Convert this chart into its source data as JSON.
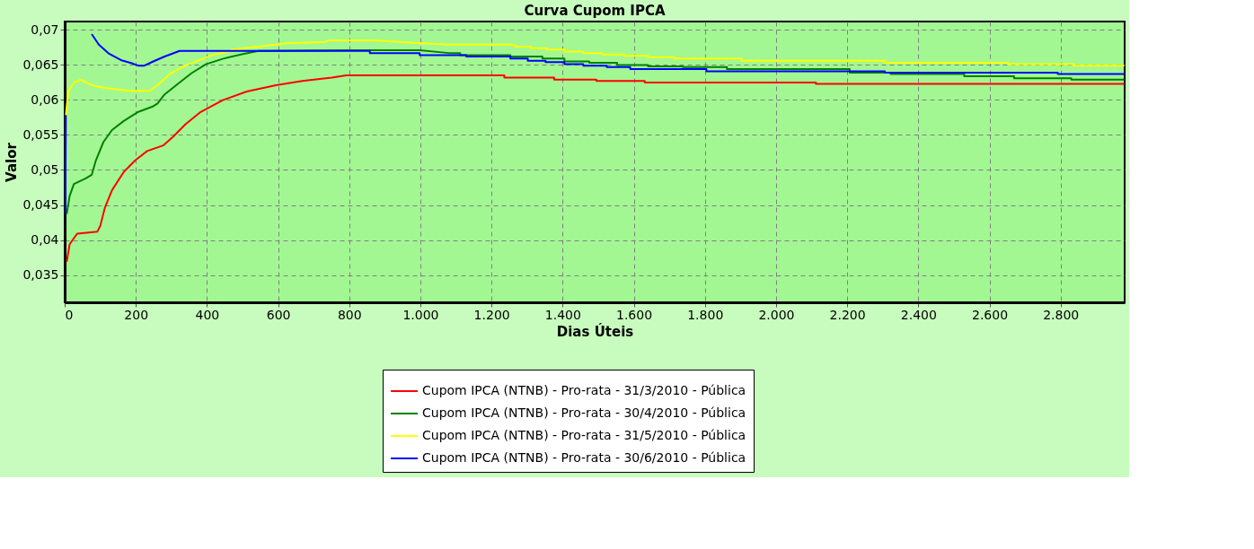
{
  "chart_data": {
    "type": "line",
    "title": "Curva Cupom IPCA",
    "xlabel": "Dias Úteis",
    "ylabel": "Valor",
    "xlim": [
      0,
      2980
    ],
    "ylim": [
      0.0311,
      0.0712
    ],
    "xticks": [
      0,
      200,
      400,
      600,
      800,
      {
        "value": 1000,
        "label": "1.000"
      },
      {
        "value": 1200,
        "label": "1.200"
      },
      {
        "value": 1400,
        "label": "1.400"
      },
      {
        "value": 1600,
        "label": "1.600"
      },
      {
        "value": 1800,
        "label": "1.800"
      },
      {
        "value": 2000,
        "label": "2.000"
      },
      {
        "value": 2200,
        "label": "2.200"
      },
      {
        "value": 2400,
        "label": "2.400"
      },
      {
        "value": 2600,
        "label": "2.600"
      },
      {
        "value": 2800,
        "label": "2.800"
      }
    ],
    "yticks": [
      {
        "value": 0.035,
        "label": "0,035"
      },
      {
        "value": 0.04,
        "label": "0,04"
      },
      {
        "value": 0.045,
        "label": "0,045"
      },
      {
        "value": 0.05,
        "label": "0,05"
      },
      {
        "value": 0.055,
        "label": "0,055"
      },
      {
        "value": 0.06,
        "label": "0,06"
      },
      {
        "value": 0.065,
        "label": "0,065"
      },
      {
        "value": 0.07,
        "label": "0,07"
      }
    ],
    "grid": true,
    "legend": "bottom",
    "line_style": "solid",
    "series": [
      {
        "name": "Cupom IPCA (NTNB) - Pro-rata - 31/3/2010 - Pública",
        "color": "#ff0000",
        "x": [
          5.8,
          14,
          35,
          92,
          100,
          113,
          133,
          166,
          199,
          232,
          277,
          306,
          339,
          380,
          446,
          512,
          594,
          668,
          751,
          792,
          1236,
          1236,
          1376,
          1376,
          1495,
          1495,
          1631,
          1631,
          2112,
          2112,
          2979
        ],
        "values": [
          0.0369,
          0.0394,
          0.0409,
          0.0412,
          0.042,
          0.0446,
          0.0471,
          0.0497,
          0.0514,
          0.0527,
          0.0535,
          0.0548,
          0.0565,
          0.0582,
          0.06,
          0.0612,
          0.0621,
          0.0627,
          0.0632,
          0.0635,
          0.0635,
          0.0632,
          0.0632,
          0.0629,
          0.0629,
          0.0627,
          0.0627,
          0.0625,
          0.0625,
          0.0623,
          0.0623
        ]
      },
      {
        "name": "Cupom IPCA (NTNB) - Pro-rata - 30/4/2010 - Pública",
        "color": "#008000",
        "x": [
          5.8,
          14,
          26,
          59,
          76,
          88,
          109,
          133,
          166,
          207,
          249,
          261,
          281,
          323,
          356,
          397,
          446,
          504,
          545,
          792,
          998,
          1080,
          1112,
          1112,
          1253,
          1253,
          1343,
          1343,
          1405,
          1405,
          1475,
          1475,
          1553,
          1553,
          1640,
          1640,
          1738,
          1738,
          1862,
          1862,
          2207,
          2207,
          2322,
          2322,
          2529,
          2529,
          2669,
          2669,
          2830,
          2830,
          2979
        ],
        "values": [
          0.0437,
          0.0463,
          0.048,
          0.0488,
          0.0493,
          0.0514,
          0.054,
          0.0557,
          0.057,
          0.0583,
          0.0591,
          0.0595,
          0.0608,
          0.0625,
          0.0638,
          0.0651,
          0.0659,
          0.0666,
          0.067,
          0.0671,
          0.0671,
          0.0667,
          0.0667,
          0.0664,
          0.0664,
          0.0662,
          0.0662,
          0.0659,
          0.0659,
          0.0655,
          0.0655,
          0.0653,
          0.0653,
          0.065,
          0.065,
          0.0648,
          0.0648,
          0.0647,
          0.0647,
          0.0644,
          0.0644,
          0.0639,
          0.0639,
          0.0637,
          0.0637,
          0.0634,
          0.0634,
          0.0631,
          0.0631,
          0.0629,
          0.0629
        ]
      },
      {
        "name": "Cupom IPCA (NTNB) - Pro-rata - 31/5/2010 - Pública",
        "color": "#ffff00",
        "x": [
          3.3,
          10,
          26,
          47,
          67,
          92,
          133,
          183,
          240,
          265,
          298,
          339,
          380,
          421,
          454,
          471,
          545,
          627,
          734,
          742,
          866,
          1006,
          1080,
          1265,
          1265,
          1310,
          1310,
          1355,
          1355,
          1405,
          1405,
          1458,
          1458,
          1512,
          1512,
          1574,
          1574,
          1640,
          1640,
          1714,
          1714,
          1903,
          1903,
          2306,
          2306,
          2652,
          2652,
          2837,
          2837,
          2979
        ],
        "values": [
          0.0578,
          0.0612,
          0.0625,
          0.0629,
          0.0623,
          0.0619,
          0.0616,
          0.0613,
          0.0613,
          0.0623,
          0.0638,
          0.0649,
          0.0657,
          0.0665,
          0.0668,
          0.0672,
          0.0676,
          0.0681,
          0.0683,
          0.0685,
          0.0685,
          0.0681,
          0.0679,
          0.0679,
          0.0676,
          0.0676,
          0.0674,
          0.0674,
          0.0672,
          0.0672,
          0.0669,
          0.0669,
          0.0667,
          0.0667,
          0.0665,
          0.0665,
          0.0663,
          0.0663,
          0.0661,
          0.0661,
          0.0659,
          0.0659,
          0.0656,
          0.0656,
          0.0653,
          0.0653,
          0.0651,
          0.0651,
          0.0649,
          0.0649
        ]
      },
      {
        "name": "Cupom IPCA (NTNB) - Pro-rata - 30/6/2010 - Pública",
        "color": "#0000ff",
        "x": [
          2,
          3.3,
          30,
          76,
          96,
          125,
          158,
          191,
          207,
          224,
          249,
          281,
          323,
          463,
          858,
          858,
          956,
          998,
          998,
          1129,
          1129,
          1253,
          1253,
          1302,
          1302,
          1352,
          1352,
          1405,
          1405,
          1458,
          1458,
          1524,
          1524,
          1590,
          1590,
          1664,
          1664,
          1804,
          1804,
          2306,
          2306,
          2792,
          2792,
          2979
        ],
        "values": [
          0.0437,
          0.0578,
          null,
          0.0694,
          0.0679,
          0.0666,
          0.0657,
          0.0652,
          0.0649,
          0.0649,
          0.0655,
          0.0662,
          0.067,
          0.067,
          0.067,
          0.0667,
          0.0667,
          0.0667,
          0.0664,
          0.0664,
          0.0662,
          0.0662,
          0.0659,
          0.0659,
          0.0656,
          0.0656,
          0.0654,
          0.0654,
          0.0651,
          0.0651,
          0.0649,
          0.0649,
          0.0647,
          0.0647,
          0.0644,
          0.0644,
          0.0644,
          0.0644,
          0.0641,
          0.0641,
          0.0639,
          0.0639,
          0.0637,
          0.0637
        ]
      }
    ]
  }
}
